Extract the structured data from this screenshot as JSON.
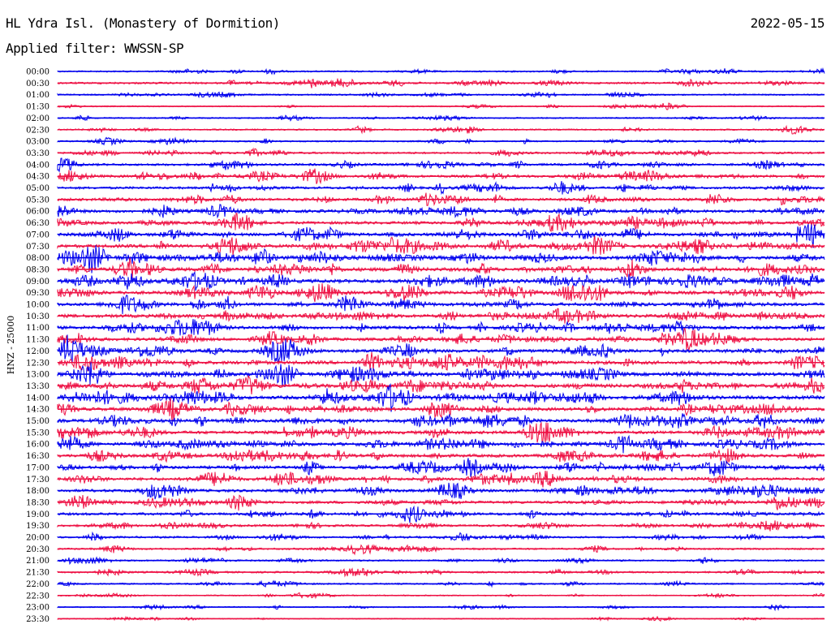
{
  "header": {
    "station": "HL Ydra Isl. (Monastery of Dormition)",
    "date": "2022-05-15",
    "filter": "Applied filter: WWSSN-SP"
  },
  "chart_data": {
    "type": "helicorder",
    "channel_label": "HNZ - 25000",
    "rows": [
      "00:00",
      "00:30",
      "01:00",
      "01:30",
      "02:00",
      "02:30",
      "03:00",
      "03:30",
      "04:00",
      "04:30",
      "05:00",
      "05:30",
      "06:00",
      "06:30",
      "07:00",
      "07:30",
      "08:00",
      "08:30",
      "09:00",
      "09:30",
      "10:00",
      "10:30",
      "11:00",
      "11:30",
      "12:00",
      "12:30",
      "13:00",
      "13:30",
      "14:00",
      "14:30",
      "15:00",
      "15:30",
      "16:00",
      "16:30",
      "17:00",
      "17:30",
      "18:00",
      "18:30",
      "19:00",
      "19:30",
      "20:00",
      "20:30",
      "21:00",
      "21:30",
      "22:00",
      "22:30",
      "23:00",
      "23:30"
    ],
    "colors": [
      "#0000ee",
      "#ee1144"
    ],
    "amplitude": [
      0.6,
      0.9,
      0.6,
      0.4,
      0.5,
      0.6,
      0.6,
      0.9,
      1.1,
      1.3,
      1.2,
      1.4,
      1.6,
      1.5,
      1.6,
      1.8,
      1.9,
      2.0,
      2.0,
      1.8,
      1.7,
      1.8,
      1.7,
      1.6,
      1.7,
      1.9,
      1.8,
      2.0,
      1.9,
      1.7,
      1.8,
      1.7,
      1.7,
      1.6,
      1.6,
      1.5,
      1.5,
      1.4,
      1.3,
      1.0,
      0.9,
      0.8,
      0.7,
      0.8,
      0.6,
      0.4,
      0.4,
      0.3
    ]
  }
}
